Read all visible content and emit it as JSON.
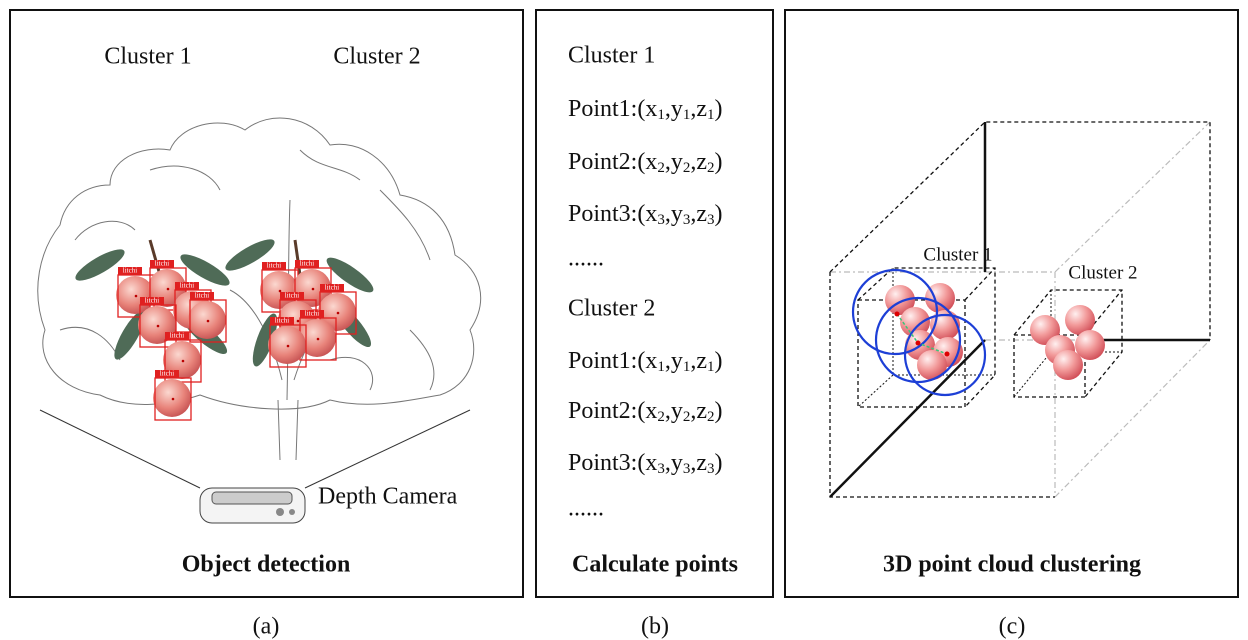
{
  "panel_a": {
    "cluster_labels": [
      "Cluster 1",
      "Cluster 2"
    ],
    "detections": [
      "litchi",
      "litchi",
      "litchi",
      "litchi",
      "litchi",
      "litchi",
      "litchi",
      "litchi",
      "litchi",
      "litchi",
      "litchi",
      "litchi",
      "litchi"
    ],
    "camera_label": "Depth Camera",
    "title": "Object detection",
    "caption": "(a)"
  },
  "panel_b": {
    "groups": [
      {
        "title": "Cluster 1",
        "points": [
          [
            "Point1:(x",
            "1",
            ",y",
            "1",
            ",z",
            "1",
            ")"
          ],
          [
            "Point2:(x",
            "2",
            ",y",
            "2",
            ",z",
            "2",
            ")"
          ],
          [
            "Point3:(x",
            "3",
            ",y",
            "3",
            ",z",
            "3",
            ")"
          ]
        ],
        "ellipsis": "......"
      },
      {
        "title": "Cluster 2",
        "points": [
          [
            "Point1:(x",
            "1",
            ",y",
            "1",
            ",z",
            "1",
            ")"
          ],
          [
            "Point2:(x",
            "2",
            ",y",
            "2",
            ",z",
            "2",
            ")"
          ],
          [
            "Point3:(x",
            "3",
            ",y",
            "3",
            ",z",
            "3",
            ")"
          ]
        ],
        "ellipsis": "......"
      }
    ],
    "title": "Calculate points",
    "caption": "(b)"
  },
  "panel_c": {
    "cluster_labels": [
      "Cluster 1",
      "Cluster 2"
    ],
    "title": "3D point cloud clustering",
    "caption": "(c)"
  }
}
